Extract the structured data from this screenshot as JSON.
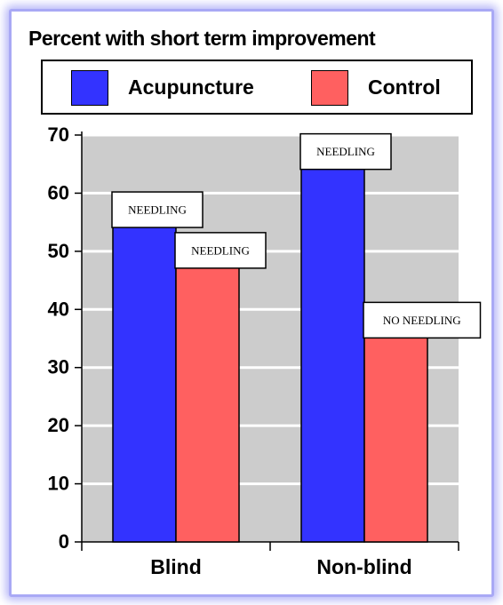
{
  "chart_data": {
    "type": "bar",
    "title": "Percent with short term improvement",
    "categories": [
      "Blind",
      "Non-blind"
    ],
    "series": [
      {
        "name": "Acupuncture",
        "color": "#3333ff",
        "values": [
          57,
          67
        ],
        "labels": [
          "NEEDLING",
          "NEEDLING"
        ]
      },
      {
        "name": "Control",
        "color": "#ff6060",
        "values": [
          50,
          38
        ],
        "labels": [
          "NEEDLING",
          "NO NEEDLING"
        ]
      }
    ],
    "yticks": [
      0,
      10,
      20,
      30,
      40,
      50,
      60,
      70
    ],
    "ylim": [
      0,
      70
    ],
    "grid": true,
    "legend_position": "top",
    "colors": {
      "plot_background": "#cccccc",
      "gridline": "#ffffff",
      "frame": "#a9a9f5"
    }
  }
}
